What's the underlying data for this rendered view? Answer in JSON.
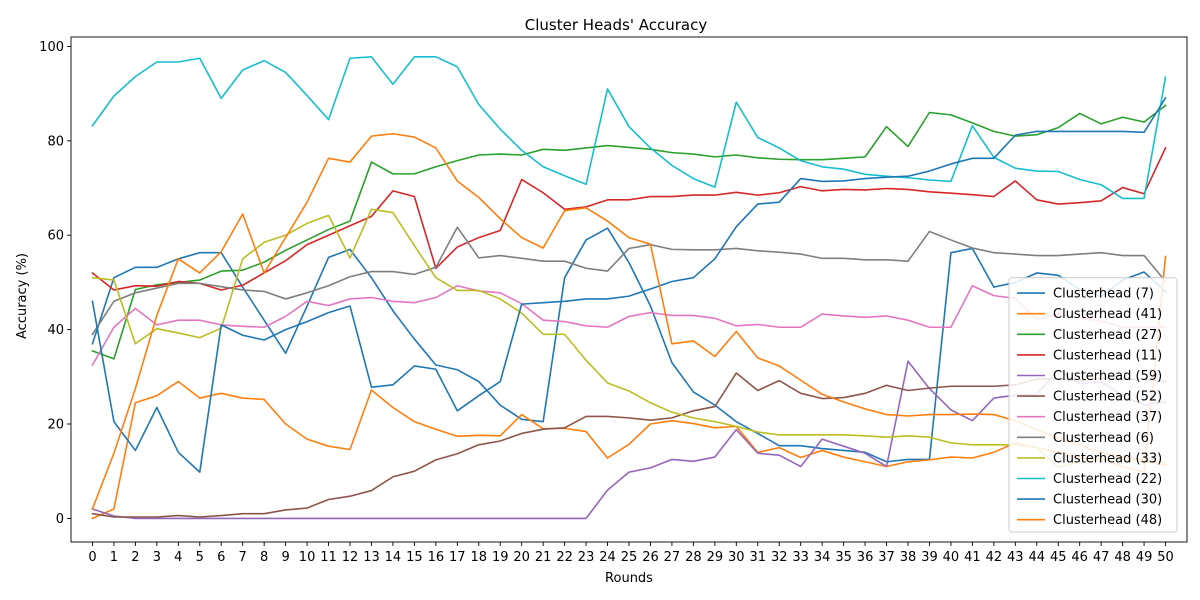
{
  "chart_data": {
    "type": "line",
    "title": "Cluster Heads' Accuracy",
    "xlabel": "Rounds",
    "ylabel": "Accuracy (%)",
    "x": [
      0,
      1,
      2,
      3,
      4,
      5,
      6,
      7,
      8,
      9,
      10,
      11,
      12,
      13,
      14,
      15,
      16,
      17,
      18,
      19,
      20,
      21,
      22,
      23,
      24,
      25,
      26,
      27,
      28,
      29,
      30,
      31,
      32,
      33,
      34,
      35,
      36,
      37,
      38,
      39,
      40,
      41,
      42,
      43,
      44,
      45,
      46,
      47,
      48,
      49,
      50
    ],
    "xlim": [
      -1,
      51
    ],
    "ylim": [
      -5,
      102
    ],
    "yticks": [
      0,
      20,
      40,
      60,
      80,
      100
    ],
    "grid": false,
    "legend_position": "lower-right",
    "series": [
      {
        "name": "Clusterhead (7)",
        "color": "#1f77b4",
        "values": [
          37,
          51,
          53.2,
          53.2,
          55,
          56.3,
          56.3,
          49,
          42,
          35,
          45,
          55.3,
          57,
          51,
          44,
          38,
          32.5,
          31.5,
          29,
          24,
          21,
          20.5,
          51,
          59,
          61.5,
          54.2,
          45,
          33,
          26.8,
          24,
          20.5,
          18,
          15.4,
          15.4,
          14.8,
          14.4,
          14,
          12,
          12.5,
          12.5,
          56.3,
          57.2,
          49,
          50,
          52,
          51.5,
          48.5,
          47,
          50.5,
          52.2,
          48
        ]
      },
      {
        "name": "Clusterhead (41)",
        "color": "#ff7f0e",
        "values": [
          0,
          2,
          24.5,
          26,
          29,
          25.5,
          26.5,
          25.5,
          25.2,
          20,
          16.8,
          15.3,
          14.6,
          27.2,
          23.5,
          20.5,
          18.9,
          17.4,
          17.6,
          17.5,
          22,
          19,
          19.1,
          18.4,
          12.8,
          15.7,
          20,
          20.7,
          20.1,
          19.2,
          19.5,
          14,
          15,
          12.9,
          14.4,
          13,
          12,
          11,
          12,
          12.4,
          13,
          12.8,
          14,
          16,
          15,
          14,
          13,
          12.6,
          11,
          9.8,
          55.5
        ]
      },
      {
        "name": "Clusterhead (27)",
        "color": "#2ca02c",
        "values": [
          35.5,
          33.8,
          48.5,
          49.5,
          50,
          50.5,
          52.4,
          52.6,
          54.3,
          56.8,
          59,
          61.2,
          63,
          75.5,
          73,
          73,
          74.5,
          75.8,
          77,
          77.2,
          77,
          78.2,
          78,
          78.5,
          79,
          78.6,
          78.2,
          77.5,
          77.2,
          76.6,
          77,
          76.4,
          76.1,
          76,
          76,
          76.3,
          76.6,
          83,
          78.8,
          86,
          85.5,
          83.8,
          82,
          81,
          81.3,
          82.8,
          85.8,
          83.6,
          85,
          84,
          87.5
        ]
      },
      {
        "name": "Clusterhead (11)",
        "color": "#d62728",
        "values": [
          52,
          48.4,
          49.3,
          49.2,
          50.2,
          49.8,
          48.4,
          49.4,
          52,
          54.6,
          58,
          60,
          62,
          64,
          69.4,
          68.2,
          53,
          57.5,
          59.5,
          61,
          71.8,
          69,
          65.5,
          66,
          67.5,
          67.5,
          68.2,
          68.2,
          68.5,
          68.5,
          69.1,
          68.5,
          69,
          70.3,
          69.4,
          69.7,
          69.6,
          69.9,
          69.7,
          69.2,
          68.9,
          68.6,
          68.2,
          71.5,
          67.5,
          66.6,
          66.9,
          67.3,
          70.1,
          68.8,
          78.5
        ]
      },
      {
        "name": "Clusterhead (59)",
        "color": "#9467bd",
        "values": [
          2,
          0.5,
          0,
          0,
          0,
          0,
          0,
          0,
          0,
          0,
          0,
          0,
          0,
          0,
          0,
          0,
          0,
          0,
          0,
          0,
          0,
          0,
          0,
          0,
          6,
          9.8,
          10.7,
          12.5,
          12.1,
          13,
          18.8,
          13.8,
          13.4,
          11,
          16.8,
          15.3,
          13.8,
          11,
          33.3,
          27.5,
          23,
          20.7,
          25.5,
          26.1,
          26.3,
          31.5,
          28.5,
          29,
          26,
          24,
          24.7
        ]
      },
      {
        "name": "Clusterhead (52)",
        "color": "#8c564b",
        "values": [
          1,
          0.3,
          0.3,
          0.3,
          0.6,
          0.3,
          0.6,
          1,
          1,
          1.8,
          2.2,
          4,
          4.7,
          5.9,
          8.8,
          10,
          12.4,
          13.7,
          15.6,
          16.4,
          18,
          18.9,
          19.2,
          21.6,
          21.6,
          21.3,
          20.8,
          21.3,
          22.8,
          23.7,
          30.8,
          27.1,
          29.2,
          26.5,
          25.4,
          25.6,
          26.5,
          28.2,
          27.1,
          27.6,
          28,
          28,
          28,
          28.3,
          29.5,
          29.6,
          29.1,
          29.7,
          29.5,
          29.4,
          29
        ]
      },
      {
        "name": "Clusterhead (37)",
        "color": "#e377c2",
        "values": [
          32.5,
          40.5,
          44.5,
          41,
          42,
          42,
          41,
          40.7,
          40.5,
          42.8,
          46,
          45.1,
          46.5,
          46.8,
          46,
          45.7,
          46.8,
          49.3,
          48.2,
          47.8,
          45.5,
          42,
          41.7,
          40.8,
          40.5,
          42.8,
          43.6,
          43,
          43,
          42.4,
          40.8,
          41.1,
          40.5,
          40.5,
          43.3,
          42.9,
          42.6,
          42.9,
          42,
          40.5,
          40.5,
          49.3,
          47.2,
          46.6,
          42.2,
          43.3,
          42.6,
          41.8,
          40.5,
          40.5,
          40.5
        ]
      },
      {
        "name": "Clusterhead (6)",
        "color": "#7f7f7f",
        "values": [
          39,
          46,
          47.8,
          48.8,
          49.8,
          49.8,
          49.1,
          48.4,
          48.1,
          46.5,
          47.8,
          49.3,
          51.2,
          52.3,
          52.3,
          51.7,
          53.2,
          61.7,
          55.2,
          55.7,
          55.1,
          54.5,
          54.5,
          53,
          52.4,
          57.2,
          58,
          57,
          56.9,
          56.9,
          57.2,
          56.7,
          56.4,
          56,
          55.1,
          55.1,
          54.8,
          54.8,
          54.5,
          60.8,
          59,
          57.3,
          56.3,
          56,
          55.7,
          55.7,
          56,
          56.3,
          55.7,
          55.7,
          50.2
        ]
      },
      {
        "name": "Clusterhead (33)",
        "color": "#bcbd22",
        "values": [
          51,
          50.5,
          37,
          40.2,
          39.3,
          38.3,
          40.3,
          55,
          58.5,
          60,
          62.5,
          64.2,
          55.2,
          65.5,
          64.8,
          57.8,
          51,
          48.3,
          48.3,
          46.5,
          43.5,
          39,
          39,
          33.5,
          28.7,
          27,
          24.5,
          22.5,
          21.3,
          20.5,
          19.5,
          18.3,
          17.7,
          17.7,
          17.7,
          17.7,
          17.5,
          17.2,
          17.5,
          17.2,
          16,
          15.6,
          15.6,
          15.6,
          15,
          10.8,
          12,
          12.5,
          12.5,
          12,
          12
        ]
      },
      {
        "name": "Clusterhead (22)",
        "color": "#17becf",
        "values": [
          83.2,
          89.5,
          93.6,
          96.7,
          96.7,
          97.5,
          89,
          95,
          97,
          94.5,
          89.6,
          84.5,
          97.5,
          97.8,
          92,
          97.8,
          97.8,
          95.7,
          87.7,
          82.5,
          78,
          74.5,
          72.6,
          70.8,
          91,
          83,
          78.5,
          74.8,
          72,
          70.2,
          88.2,
          80.7,
          78.5,
          75.8,
          74.5,
          74,
          72.9,
          72.5,
          72.2,
          71.7,
          71.4,
          83.2,
          76.5,
          74.2,
          73.6,
          73.5,
          71.8,
          70.7,
          67.8,
          67.8,
          93.5
        ]
      },
      {
        "name": "Clusterhead (30)",
        "color": "#1f77b4",
        "values": [
          46,
          20.5,
          14.4,
          23.5,
          14,
          9.8,
          41,
          38.8,
          37.8,
          40,
          41.7,
          43.6,
          45,
          27.8,
          28.3,
          32.3,
          31.6,
          22.8,
          26,
          29,
          45.4,
          45.7,
          46,
          46.5,
          46.5,
          47.1,
          48.6,
          50.2,
          51,
          55,
          61.8,
          66.6,
          67,
          72,
          71.4,
          71.5,
          72,
          72.3,
          72.5,
          73.6,
          75.1,
          76.3,
          76.3,
          81.2,
          82,
          82,
          82,
          82,
          82,
          81.8,
          89.1
        ]
      },
      {
        "name": "Clusterhead (48)",
        "color": "#ff7f0e",
        "values": [
          2,
          13.8,
          27.5,
          43,
          55,
          52,
          56.5,
          64.5,
          52,
          59.5,
          67,
          76.3,
          75.5,
          81,
          81.5,
          80.8,
          78.5,
          71.5,
          68,
          63.5,
          59.5,
          57.3,
          65.2,
          65.8,
          63,
          59.5,
          58.1,
          37,
          37.6,
          34.3,
          39.6,
          34,
          32.3,
          29.3,
          26.3,
          24.7,
          23.2,
          22,
          21.7,
          22,
          22,
          22.1,
          22,
          20.7,
          18.8,
          17,
          15.5,
          14,
          13,
          12.3,
          11.3
        ]
      }
    ]
  }
}
